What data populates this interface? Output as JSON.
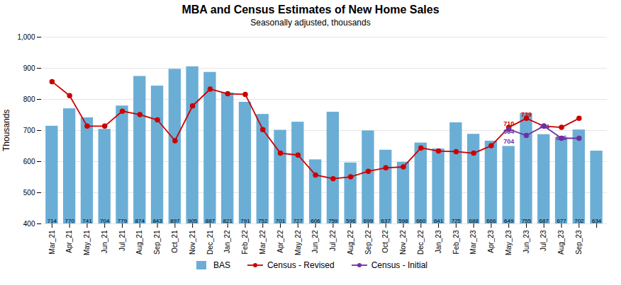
{
  "chart_data": {
    "type": "bar",
    "title": "MBA and Census Estimates of New Home Sales",
    "subtitle": "Seasonally adjusted, thousands",
    "ylabel": "Thousands",
    "categories": [
      "Mar_21",
      "Apr_21",
      "May_21",
      "Jun_21",
      "Jul_21",
      "Aug_21",
      "Sep_21",
      "Oct_21",
      "Nov_21",
      "Dec_21",
      "Jan_22",
      "Feb_22",
      "Mar_22",
      "Apr_22",
      "May_22",
      "Jun_22",
      "Jul_22",
      "Aug_22",
      "Sep_22",
      "Oct_22",
      "Nov_22",
      "Dec_22",
      "Jan_23",
      "Feb_23",
      "Mar_23",
      "Apr_23",
      "May_23",
      "Jun_23",
      "Jul_23",
      "Aug_23",
      "Sep_23",
      null
    ],
    "series": [
      {
        "name": "BAS",
        "type": "bar",
        "color": "#6aaed6",
        "data_labels": true,
        "values": [
          714,
          770,
          741,
          704,
          779,
          874,
          843,
          897,
          905,
          887,
          821,
          791,
          752,
          701,
          727,
          606,
          759,
          596,
          699,
          637,
          598,
          660,
          641,
          725,
          688,
          666,
          649,
          755,
          687,
          677,
          702,
          634
        ]
      },
      {
        "name": "Census - Revised",
        "type": "line",
        "color": "#cc0000",
        "marker": "circle",
        "values": [
          857,
          812,
          714,
          714,
          762,
          751,
          734,
          667,
          779,
          833,
          818,
          816,
          703,
          627,
          621,
          557,
          545,
          551,
          569,
          580,
          583,
          644,
          634,
          632,
          627,
          651,
          710,
          739,
          714,
          710,
          739,
          null
        ]
      },
      {
        "name": "Census - Initial",
        "type": "line",
        "color": "#7030a0",
        "marker": "circle",
        "values": [
          null,
          null,
          null,
          null,
          null,
          null,
          null,
          null,
          null,
          null,
          null,
          null,
          null,
          null,
          null,
          null,
          null,
          null,
          null,
          null,
          null,
          null,
          null,
          null,
          null,
          null,
          704,
          684,
          714,
          675,
          675,
          null
        ]
      }
    ],
    "ylim": [
      400,
      1000
    ],
    "yticks": [
      400,
      500,
      600,
      700,
      800,
      900,
      {
        "value": 1000,
        "label": "1,000"
      }
    ],
    "grid": true,
    "legend": "bottom",
    "annotations": [
      {
        "text": "710",
        "x": "May_23",
        "y": 715,
        "color": "#cc0000"
      },
      {
        "text": "739",
        "x": "Jun_23",
        "y": 744,
        "color": "#cc0000"
      },
      {
        "text": "684",
        "x": "May_23",
        "y": 690,
        "color": "#7030a0"
      },
      {
        "text": "704",
        "x": "May_23",
        "y": 658,
        "color": "#7030a0"
      },
      {
        "text": "714",
        "x": "Jul_23",
        "y": 706,
        "color": "#7030a0"
      },
      {
        "text": "675",
        "x": "Aug_23",
        "y": 670,
        "color": "#7030a0"
      }
    ]
  }
}
